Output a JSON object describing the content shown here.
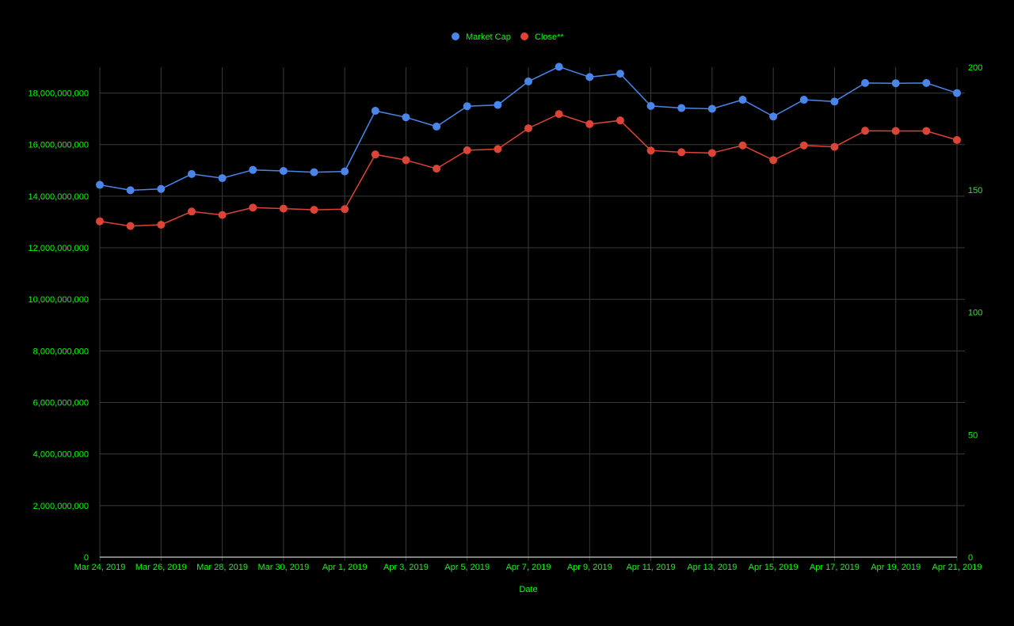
{
  "chart_data": {
    "type": "line",
    "title": "",
    "xlabel": "Date",
    "y_left_label": "",
    "y_right_label": "",
    "x": [
      "Mar 24, 2019",
      "Mar 25, 2019",
      "Mar 26, 2019",
      "Mar 27, 2019",
      "Mar 28, 2019",
      "Mar 29, 2019",
      "Mar 30, 2019",
      "Mar 31, 2019",
      "Apr 1, 2019",
      "Apr 2, 2019",
      "Apr 3, 2019",
      "Apr 4, 2019",
      "Apr 5, 2019",
      "Apr 6, 2019",
      "Apr 7, 2019",
      "Apr 8, 2019",
      "Apr 9, 2019",
      "Apr 10, 2019",
      "Apr 11, 2019",
      "Apr 12, 2019",
      "Apr 13, 2019",
      "Apr 14, 2019",
      "Apr 15, 2019",
      "Apr 16, 2019",
      "Apr 17, 2019",
      "Apr 18, 2019",
      "Apr 19, 2019",
      "Apr 20, 2019",
      "Apr 21, 2019"
    ],
    "x_tick_labels": [
      "Mar 24, 2019",
      "Mar 26, 2019",
      "Mar 28, 2019",
      "Mar 30, 2019",
      "Apr 1, 2019",
      "Apr 3, 2019",
      "Apr 5, 2019",
      "Apr 7, 2019",
      "Apr 9, 2019",
      "Apr 11, 2019",
      "Apr 13, 2019",
      "Apr 15, 2019",
      "Apr 17, 2019",
      "Apr 19, 2019",
      "Apr 21, 2019"
    ],
    "y_left_range": [
      0,
      19000000000
    ],
    "y_left_ticks": [
      0,
      2000000000,
      4000000000,
      6000000000,
      8000000000,
      10000000000,
      12000000000,
      14000000000,
      16000000000,
      18000000000
    ],
    "y_left_tick_labels": [
      "0",
      "2,000,000,000",
      "4,000,000,000",
      "6,000,000,000",
      "8,000,000,000",
      "10,000,000,000",
      "12,000,000,000",
      "14,000,000,000",
      "16,000,000,000",
      "18,000,000,000"
    ],
    "y_right_range": [
      0,
      200
    ],
    "y_right_ticks": [
      0,
      50,
      100,
      150,
      200
    ],
    "y_right_tick_labels": [
      "0",
      "50",
      "100",
      "150",
      "200"
    ],
    "grid": true,
    "legend": "top-center",
    "series": [
      {
        "name": "Market Cap",
        "axis": "left",
        "color": "#4a86e8",
        "values": [
          14440000000,
          14230000000,
          14280000000,
          14860000000,
          14700000000,
          15020000000,
          14980000000,
          14930000000,
          14960000000,
          17310000000,
          17060000000,
          16700000000,
          17490000000,
          17540000000,
          18450000000,
          19020000000,
          18620000000,
          18750000000,
          17500000000,
          17420000000,
          17390000000,
          17740000000,
          17090000000,
          17740000000,
          17670000000,
          18390000000,
          18380000000,
          18390000000,
          18000000000
        ]
      },
      {
        "name": "Close**",
        "axis": "right",
        "color": "#db4437",
        "values": [
          137.1,
          135.2,
          135.7,
          141.1,
          139.7,
          142.7,
          142.3,
          141.8,
          142.1,
          164.4,
          162.1,
          158.6,
          166.1,
          166.6,
          175.1,
          180.9,
          176.8,
          178.3,
          166.0,
          165.3,
          165.0,
          168.1,
          162.1,
          168.1,
          167.5,
          174.1,
          174.0,
          174.0,
          170.3
        ]
      }
    ]
  },
  "colors": {
    "background": "#000000",
    "text": "#00ff00",
    "grid": "#3a3a3a",
    "axis": "#ffffff"
  }
}
